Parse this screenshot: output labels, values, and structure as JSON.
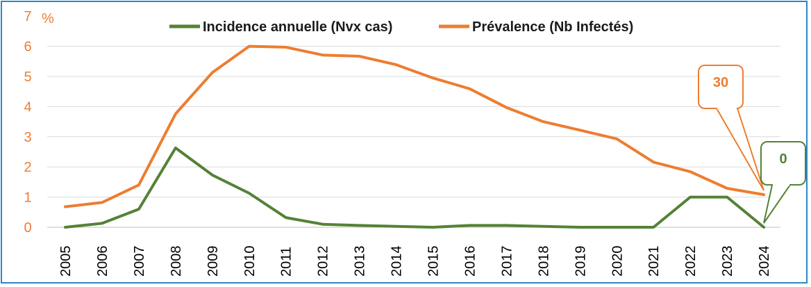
{
  "chart_data": {
    "type": "line",
    "x": [
      "2005",
      "2006",
      "2007",
      "2008",
      "2009",
      "2010",
      "2011",
      "2012",
      "2013",
      "2014",
      "2015",
      "2016",
      "2017",
      "2018",
      "2019",
      "2020",
      "2021",
      "2022",
      "2023",
      "2024"
    ],
    "y_unit": "%",
    "ylim": [
      0,
      7
    ],
    "yticks": [
      "0",
      "1",
      "2",
      "3",
      "4",
      "5",
      "6",
      "7"
    ],
    "grid": true,
    "legend_position": "top",
    "series": [
      {
        "name": "Incidence annuelle (Nvx cas)",
        "color": "#548235",
        "values": [
          0.0,
          0.13,
          0.6,
          2.63,
          1.73,
          1.13,
          0.32,
          0.1,
          0.06,
          0.03,
          0.0,
          0.06,
          0.06,
          0.03,
          0.0,
          0.0,
          0.0,
          1.0,
          1.0,
          0.0
        ]
      },
      {
        "name": "Prévalence (Nb Infectés)",
        "color": "#ed7d31",
        "values": [
          0.68,
          0.82,
          1.4,
          3.76,
          5.13,
          6.0,
          5.97,
          5.71,
          5.67,
          5.39,
          4.95,
          4.59,
          3.97,
          3.5,
          3.22,
          2.93,
          2.16,
          1.84,
          1.29,
          1.08
        ]
      }
    ],
    "annotations": [
      {
        "text": "30",
        "series": "Prévalence (Nb Infectés)",
        "x": "2024",
        "color": "#ed7d31"
      },
      {
        "text": "0",
        "series": "Incidence annuelle (Nvx cas)",
        "x": "2024",
        "color": "#548235"
      }
    ]
  }
}
